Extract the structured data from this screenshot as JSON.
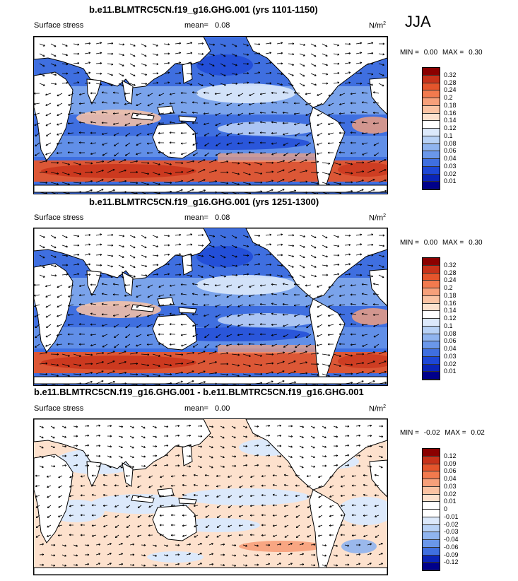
{
  "season": "JJA",
  "panels": [
    {
      "id": "p1",
      "title": "b.e11.BLMTRC5CN.f19_g16.GHG.001 (yrs 1101-1150)",
      "field": "Surface stress",
      "mean_label": "mean=",
      "mean": "0.08",
      "units": "N/m",
      "units_exp": "2",
      "min_label": "MIN =",
      "min": "0.00",
      "max_label": "MAX =",
      "max": "0.30",
      "colorbar_labels": [
        "0.32",
        "0.28",
        "0.24",
        "0.2",
        "0.18",
        "0.16",
        "0.14",
        "0.12",
        "0.1",
        "0.08",
        "0.06",
        "0.04",
        "0.03",
        "0.02",
        "0.01"
      ],
      "colors": [
        "#8b0000",
        "#c8321a",
        "#e5552c",
        "#f27a4e",
        "#f7a07a",
        "#fbc3a3",
        "#fde1cd",
        "#ffffff",
        "#dce9fb",
        "#b8d2f6",
        "#8fb4ef",
        "#6a97ea",
        "#3f6fe0",
        "#1d47d6",
        "#0a24b8",
        "#00008b"
      ]
    },
    {
      "id": "p2",
      "title": "b.e11.BLMTRC5CN.f19_g16.GHG.001 (yrs 1251-1300)",
      "field": "Surface stress",
      "mean_label": "mean=",
      "mean": "0.08",
      "units": "N/m",
      "units_exp": "2",
      "min_label": "MIN =",
      "min": "0.00",
      "max_label": "MAX =",
      "max": "0.30",
      "colorbar_labels": [
        "0.32",
        "0.28",
        "0.24",
        "0.2",
        "0.18",
        "0.16",
        "0.14",
        "0.12",
        "0.1",
        "0.08",
        "0.06",
        "0.04",
        "0.03",
        "0.02",
        "0.01"
      ],
      "colors": [
        "#8b0000",
        "#c8321a",
        "#e5552c",
        "#f27a4e",
        "#f7a07a",
        "#fbc3a3",
        "#fde1cd",
        "#ffffff",
        "#dce9fb",
        "#b8d2f6",
        "#8fb4ef",
        "#6a97ea",
        "#3f6fe0",
        "#1d47d6",
        "#0a24b8",
        "#00008b"
      ]
    },
    {
      "id": "p3",
      "title": "b.e11.BLMTRC5CN.f19_g16.GHG.001 - b.e11.BLMTRC5CN.f19_g16.GHG.001",
      "field": "Surface stress",
      "mean_label": "mean=",
      "mean": "0.00",
      "units": "N/m",
      "units_exp": "2",
      "min_label": "MIN =",
      "min": "-0.02",
      "max_label": "MAX =",
      "max": "0.02",
      "colorbar_labels": [
        "0.12",
        "0.09",
        "0.06",
        "0.04",
        "0.03",
        "0.02",
        "0.01",
        "0",
        "-0.01",
        "-0.02",
        "-0.03",
        "-0.04",
        "-0.06",
        "-0.09",
        "-0.12"
      ],
      "colors": [
        "#8b0000",
        "#c8321a",
        "#e5552c",
        "#f27a4e",
        "#f7a07a",
        "#fbc3a3",
        "#fde1cd",
        "#ffffff",
        "#ffffff",
        "#dce9fb",
        "#b8d2f6",
        "#8fb4ef",
        "#6a97ea",
        "#3f6fe0",
        "#0a24b8",
        "#00008b"
      ]
    }
  ]
}
